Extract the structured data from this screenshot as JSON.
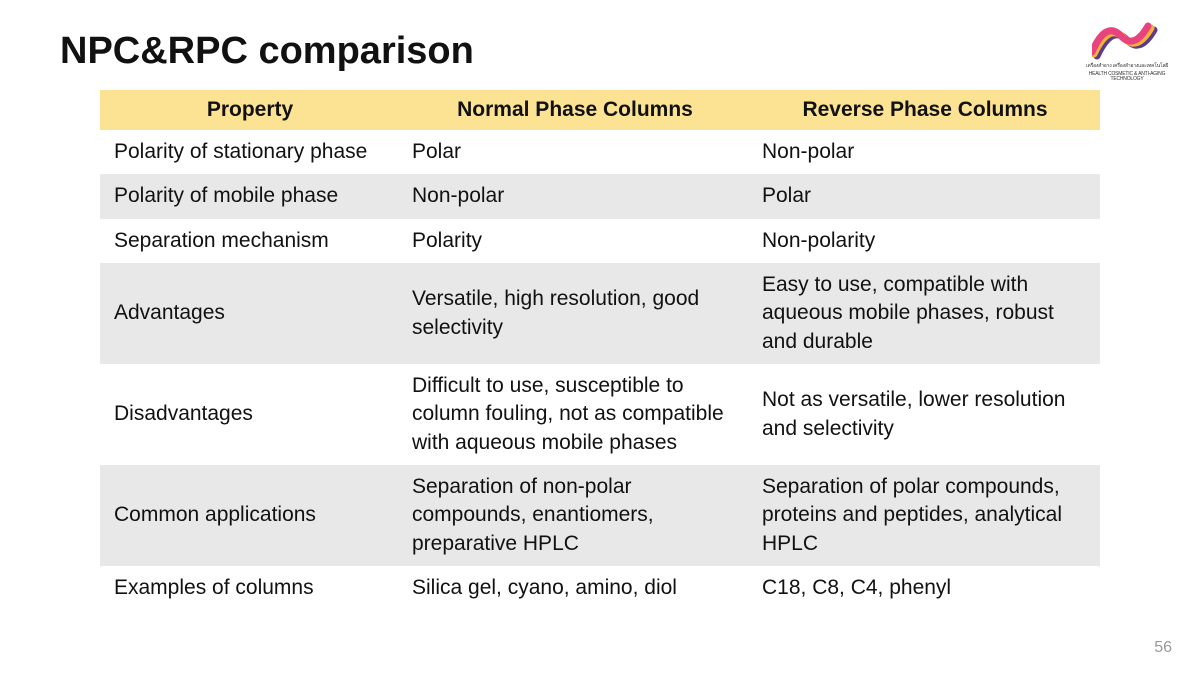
{
  "title": "NPC&RPC comparison",
  "page_number": "56",
  "logo": {
    "caption_line1": "เครื่องสำอาง เครื่องสำอางและเทคโนโลยี",
    "caption_line2": "HEALTH COSMETIC & ANTI-AGING TECHNOLOGY",
    "swoosh_colors": [
      "#e8437f",
      "#f9b233",
      "#5b3b8c"
    ]
  },
  "table": {
    "header_bg": "#fce393",
    "alt_row_bg": "#e8e8e8",
    "text_color": "#111111",
    "font_size_pt": 16,
    "column_widths_pct": [
      30,
      35,
      35
    ],
    "columns": [
      "Property",
      "Normal Phase Columns",
      "Reverse Phase Columns"
    ],
    "rows": [
      {
        "alt": false,
        "cells": [
          "Polarity of stationary phase",
          "Polar",
          "Non-polar"
        ]
      },
      {
        "alt": true,
        "cells": [
          "Polarity of mobile phase",
          "Non-polar",
          "Polar"
        ]
      },
      {
        "alt": false,
        "cells": [
          "Separation mechanism",
          "Polarity",
          "Non-polarity"
        ]
      },
      {
        "alt": true,
        "cells": [
          "Advantages",
          "Versatile, high resolution, good selectivity",
          "Easy to use, compatible with aqueous mobile phases, robust and durable"
        ]
      },
      {
        "alt": false,
        "cells": [
          "Disadvantages",
          "Difficult to use, susceptible to column fouling, not as compatible with aqueous mobile phases",
          "Not as versatile, lower resolution and selectivity"
        ]
      },
      {
        "alt": true,
        "cells": [
          "Common applications",
          "Separation of non-polar compounds, enantiomers, preparative HPLC",
          "Separation of polar compounds, proteins and peptides, analytical HPLC"
        ]
      },
      {
        "alt": false,
        "cells": [
          "Examples of columns",
          "Silica gel, cyano, amino, diol",
          "C18, C8, C4, phenyl"
        ]
      }
    ]
  }
}
